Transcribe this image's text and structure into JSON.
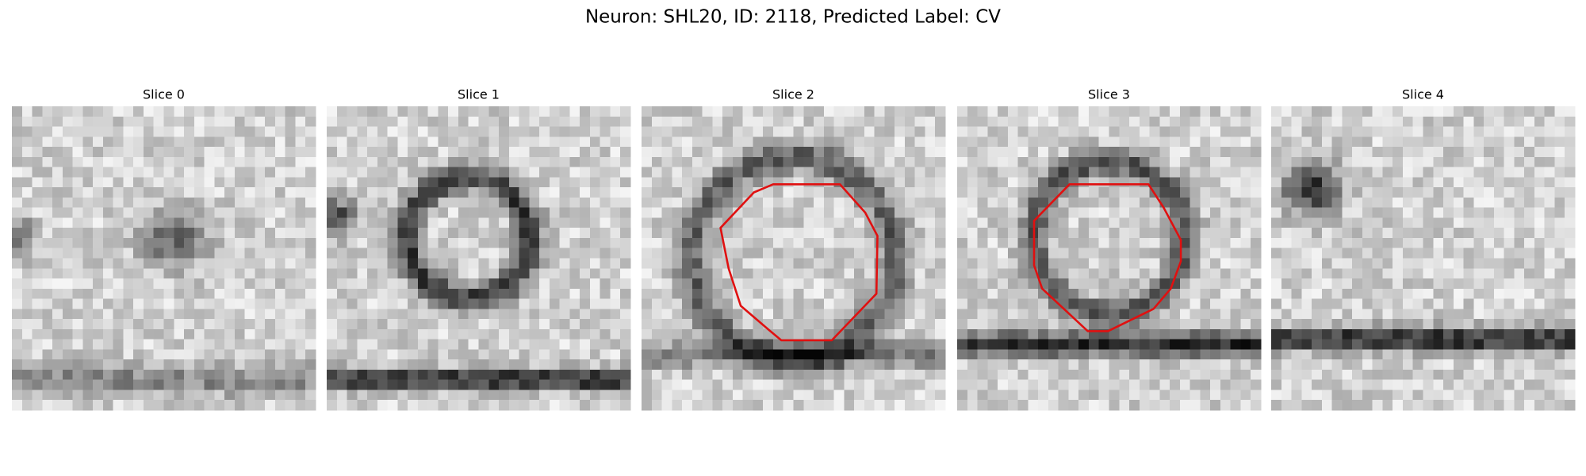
{
  "title": "Neuron: SHL20, ID: 2118, Predicted Label: CV",
  "panels": [
    {
      "title": "Slice 0"
    },
    {
      "title": "Slice 1"
    },
    {
      "title": "Slice 2"
    },
    {
      "title": "Slice 3"
    },
    {
      "title": "Slice 4"
    }
  ]
}
